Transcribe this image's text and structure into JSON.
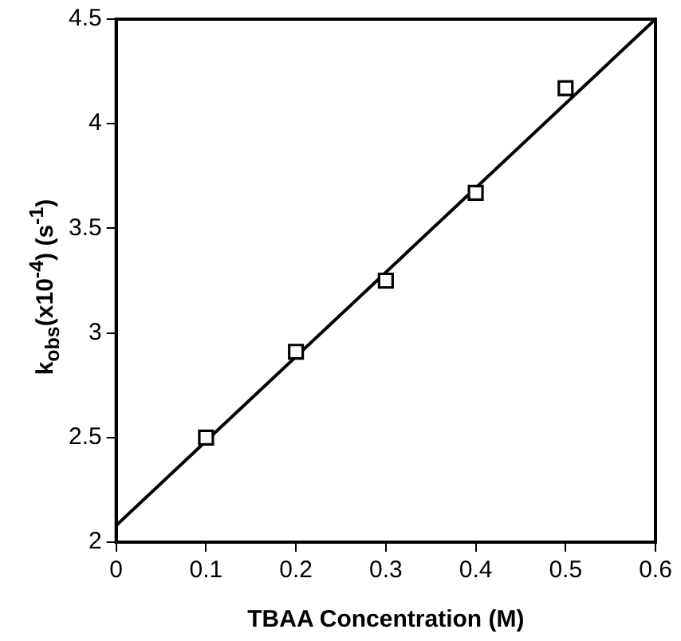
{
  "chart_data": {
    "type": "scatter",
    "xlabel": "TBAA Concentration (M)",
    "ylabel": "k$_{obs}$(x10$^{-4}$) (s$^{-1}$)",
    "series": [
      {
        "type": "scatter",
        "x": [
          0.1,
          0.2,
          0.3,
          0.4,
          0.5
        ],
        "values": [
          2.5,
          2.91,
          3.25,
          3.67,
          4.17
        ],
        "color": "#000000",
        "marker": "square"
      },
      {
        "type": "line",
        "x": [
          0,
          0.6
        ],
        "values": [
          2.08,
          4.5
        ],
        "color": "#000000",
        "marker": "none",
        "line_style": "solid"
      }
    ],
    "xlim": [
      0,
      0.6
    ],
    "xticks": [
      0,
      0.1,
      0.2,
      0.3,
      0.4,
      0.5,
      0.6
    ],
    "ylim": [
      2,
      4.5
    ],
    "yticks": [
      2,
      2.5,
      3,
      3.5,
      4,
      4.5
    ],
    "grid": false,
    "legend": false
  }
}
